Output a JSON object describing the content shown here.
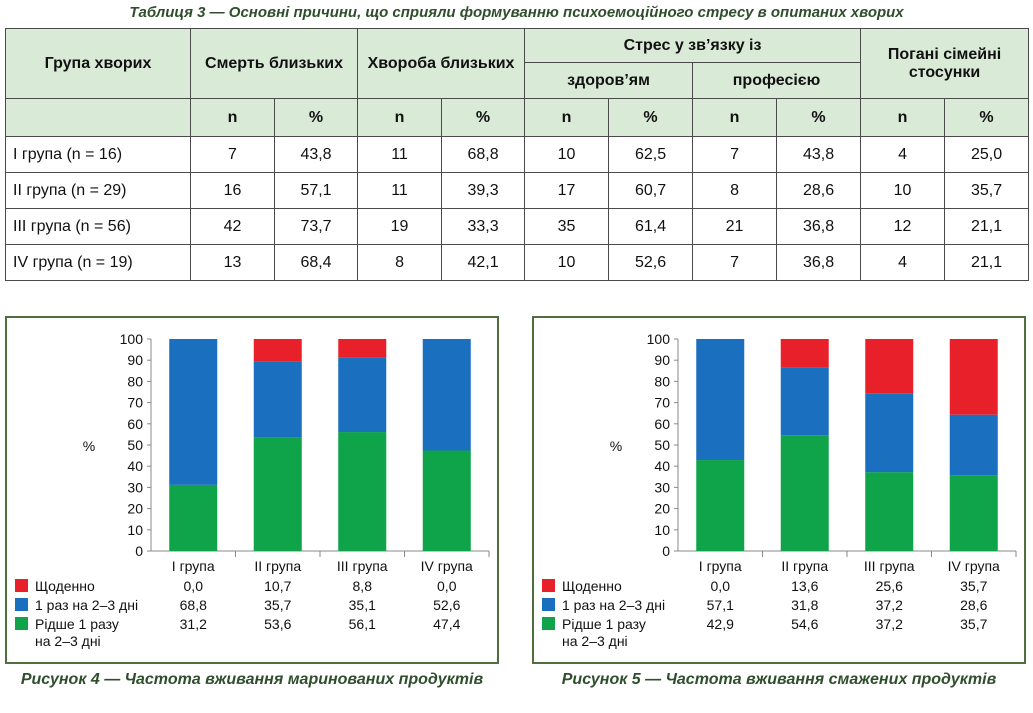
{
  "table": {
    "caption": "Таблиця 3 — Основні причини, що сприяли формуванню психоемоційного стресу в опитаних хворих",
    "header": {
      "group": "Група хворих",
      "death": "Смерть близьких",
      "illness": "Хвороба близьких",
      "stress": "Стрес у зв’язку із",
      "health": "здоров’ям",
      "profession": "професією",
      "family": "Погані сімейні стосунки",
      "n": "n",
      "pct": "%"
    },
    "rows": [
      {
        "group": "I група (n = 16)",
        "cells": [
          "7",
          "43,8",
          "11",
          "68,8",
          "10",
          "62,5",
          "7",
          "43,8",
          "4",
          "25,0"
        ]
      },
      {
        "group": "II група (n = 29)",
        "cells": [
          "16",
          "57,1",
          "11",
          "39,3",
          "17",
          "60,7",
          "8",
          "28,6",
          "10",
          "35,7"
        ]
      },
      {
        "group": "III група (n = 56)",
        "cells": [
          "42",
          "73,7",
          "19",
          "33,3",
          "35",
          "61,4",
          "21",
          "36,8",
          "12",
          "21,1"
        ]
      },
      {
        "group": "IV група (n = 19)",
        "cells": [
          "13",
          "68,4",
          "8",
          "42,1",
          "10",
          "52,6",
          "7",
          "36,8",
          "4",
          "21,1"
        ]
      }
    ]
  },
  "chart_data": [
    {
      "type": "bar",
      "stacked": true,
      "caption": "Рисунок 4 — Частота вживання маринованих продуктів",
      "ylabel": "%",
      "ylim": [
        0,
        100
      ],
      "yticks": [
        0,
        10,
        20,
        30,
        40,
        50,
        60,
        70,
        80,
        90,
        100
      ],
      "categories": [
        "I група",
        "II група",
        "III група",
        "IV група"
      ],
      "series": [
        {
          "name": "Щоденно",
          "color": "#e8202a",
          "values": [
            0.0,
            10.7,
            8.8,
            0.0
          ],
          "labels": [
            "0,0",
            "10,7",
            "8,8",
            "0,0"
          ]
        },
        {
          "name": "1 раз на 2–3 дні",
          "color": "#1a6fbe",
          "values": [
            68.8,
            35.7,
            35.1,
            52.6
          ],
          "labels": [
            "68,8",
            "35,7",
            "35,1",
            "52,6"
          ]
        },
        {
          "name": "Рідше 1 разу на 2–3 дні",
          "color": "#0fa34a",
          "values": [
            31.2,
            53.6,
            56.1,
            47.4
          ],
          "labels": [
            "31,2",
            "53,6",
            "56,1",
            "47,4"
          ]
        }
      ]
    },
    {
      "type": "bar",
      "stacked": true,
      "caption": "Рисунок 5 — Частота вживання смажених продуктів",
      "ylabel": "%",
      "ylim": [
        0,
        100
      ],
      "yticks": [
        0,
        10,
        20,
        30,
        40,
        50,
        60,
        70,
        80,
        90,
        100
      ],
      "categories": [
        "I група",
        "II група",
        "III група",
        "IV група"
      ],
      "series": [
        {
          "name": "Щоденно",
          "color": "#e8202a",
          "values": [
            0.0,
            13.6,
            25.6,
            35.7
          ],
          "labels": [
            "0,0",
            "13,6",
            "25,6",
            "35,7"
          ]
        },
        {
          "name": "1 раз на 2–3 дні",
          "color": "#1a6fbe",
          "values": [
            57.1,
            31.8,
            37.2,
            28.6
          ],
          "labels": [
            "57,1",
            "31,8",
            "37,2",
            "28,6"
          ]
        },
        {
          "name": "Рідше 1 разу на 2–3 дні",
          "color": "#0fa34a",
          "values": [
            42.9,
            54.6,
            37.2,
            35.7
          ],
          "labels": [
            "42,9",
            "54,6",
            "37,2",
            "35,7"
          ]
        }
      ]
    }
  ]
}
